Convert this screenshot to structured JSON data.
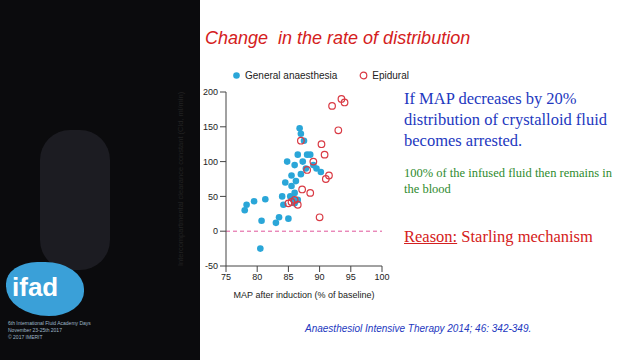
{
  "chart_data": {
    "type": "scatter",
    "title": "Change  in the rate of distribution",
    "x_label": "MAP after induction (% of baseline)",
    "y_label": "Intercompartmental clearance constant (Cld, ml/min)",
    "xlim": [
      75,
      100
    ],
    "xticks": [
      75,
      80,
      85,
      90,
      95,
      100
    ],
    "ylim": [
      -50,
      200
    ],
    "yticks": [
      -50,
      0,
      50,
      100,
      150,
      200
    ],
    "reference_y": 0,
    "legend": "upper left",
    "series": [
      {
        "name": "General anaesthesia",
        "color": "#2aa6d8",
        "marker": "circle",
        "x": [
          78,
          78.3,
          79.5,
          81.3,
          80.7,
          80.5,
          83,
          83.5,
          84,
          84.5,
          84.2,
          85,
          85.3,
          85.5,
          85.5,
          86,
          86.2,
          86.5,
          86.5,
          86.8,
          87,
          87.3,
          87.5,
          87.8,
          88,
          88.5,
          89,
          89.5,
          90.2,
          86,
          84.8,
          86,
          87,
          85.8
        ],
        "values": [
          30,
          38,
          43,
          46,
          15,
          -25,
          12,
          20,
          50,
          70,
          38,
          18,
          50,
          65,
          80,
          95,
          72,
          45,
          110,
          148,
          140,
          100,
          130,
          90,
          110,
          110,
          95,
          90,
          85,
          40,
          100,
          55,
          82,
          45
        ]
      },
      {
        "name": "Epidural",
        "color": "#d93a44",
        "marker": "circle_open",
        "x": [
          85,
          85.5,
          86,
          86.5,
          87,
          87.2,
          88,
          88.5,
          89,
          90,
          90.3,
          90.8,
          91,
          91.5,
          92,
          93,
          93.5,
          94
        ],
        "values": [
          40,
          42,
          45,
          38,
          130,
          60,
          88,
          55,
          100,
          20,
          125,
          110,
          75,
          80,
          180,
          145,
          190,
          185
        ]
      }
    ],
    "annotations": [
      {
        "text": "If MAP decreases by 20% distribution of crystalloid fluid becomes arrested.",
        "color": "#2338c0"
      },
      {
        "text": "100% of the infused fluid then remains in the blood",
        "color": "#2e8b2e"
      },
      {
        "label": "Reason:",
        "text": "Starling mechanism",
        "color": "#d42020"
      }
    ],
    "citation": "Anaesthesiol Intensive Therapy 2014; 46: 342-349."
  },
  "event": {
    "logo": "ifad",
    "lines": [
      "6th International Fluid Academy Days",
      "November 23-25th 2017",
      "© 2017 IMERIT"
    ]
  }
}
